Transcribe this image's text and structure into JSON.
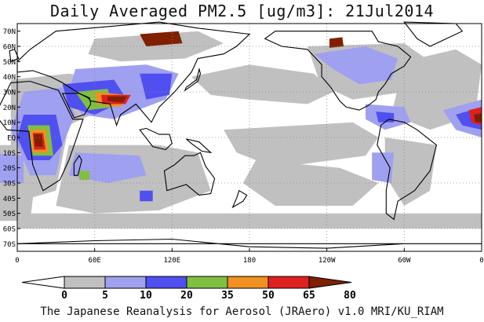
{
  "title": "Daily Averaged PM2.5 [ug/m3]: 21Jul2014",
  "footer": "The Japanese Reanalysis for Aerosol (JRAero) v1.0 MRI/KU_RIAM",
  "map": {
    "projection": "equirectangular",
    "longitude_range": [
      0,
      360
    ],
    "latitude_range": [
      -75,
      75
    ],
    "grid": "dotted",
    "lon_tick_labels": [
      "0",
      "60E",
      "120E",
      "180",
      "120W",
      "60W",
      "0"
    ],
    "lat_tick_labels": [
      "70N",
      "60N",
      "50N",
      "40N",
      "30N",
      "20N",
      "10N",
      "EQ",
      "10S",
      "20S",
      "30S",
      "40S",
      "50S",
      "60S",
      "70S"
    ]
  },
  "colorbar": {
    "levels": [
      "0",
      "5",
      "10",
      "20",
      "35",
      "50",
      "65",
      "80"
    ],
    "colors": [
      "#ffffff",
      "#c0c0c0",
      "#a0a0f0",
      "#5050f0",
      "#80c040",
      "#f09020",
      "#e02020",
      "#802000"
    ]
  }
}
